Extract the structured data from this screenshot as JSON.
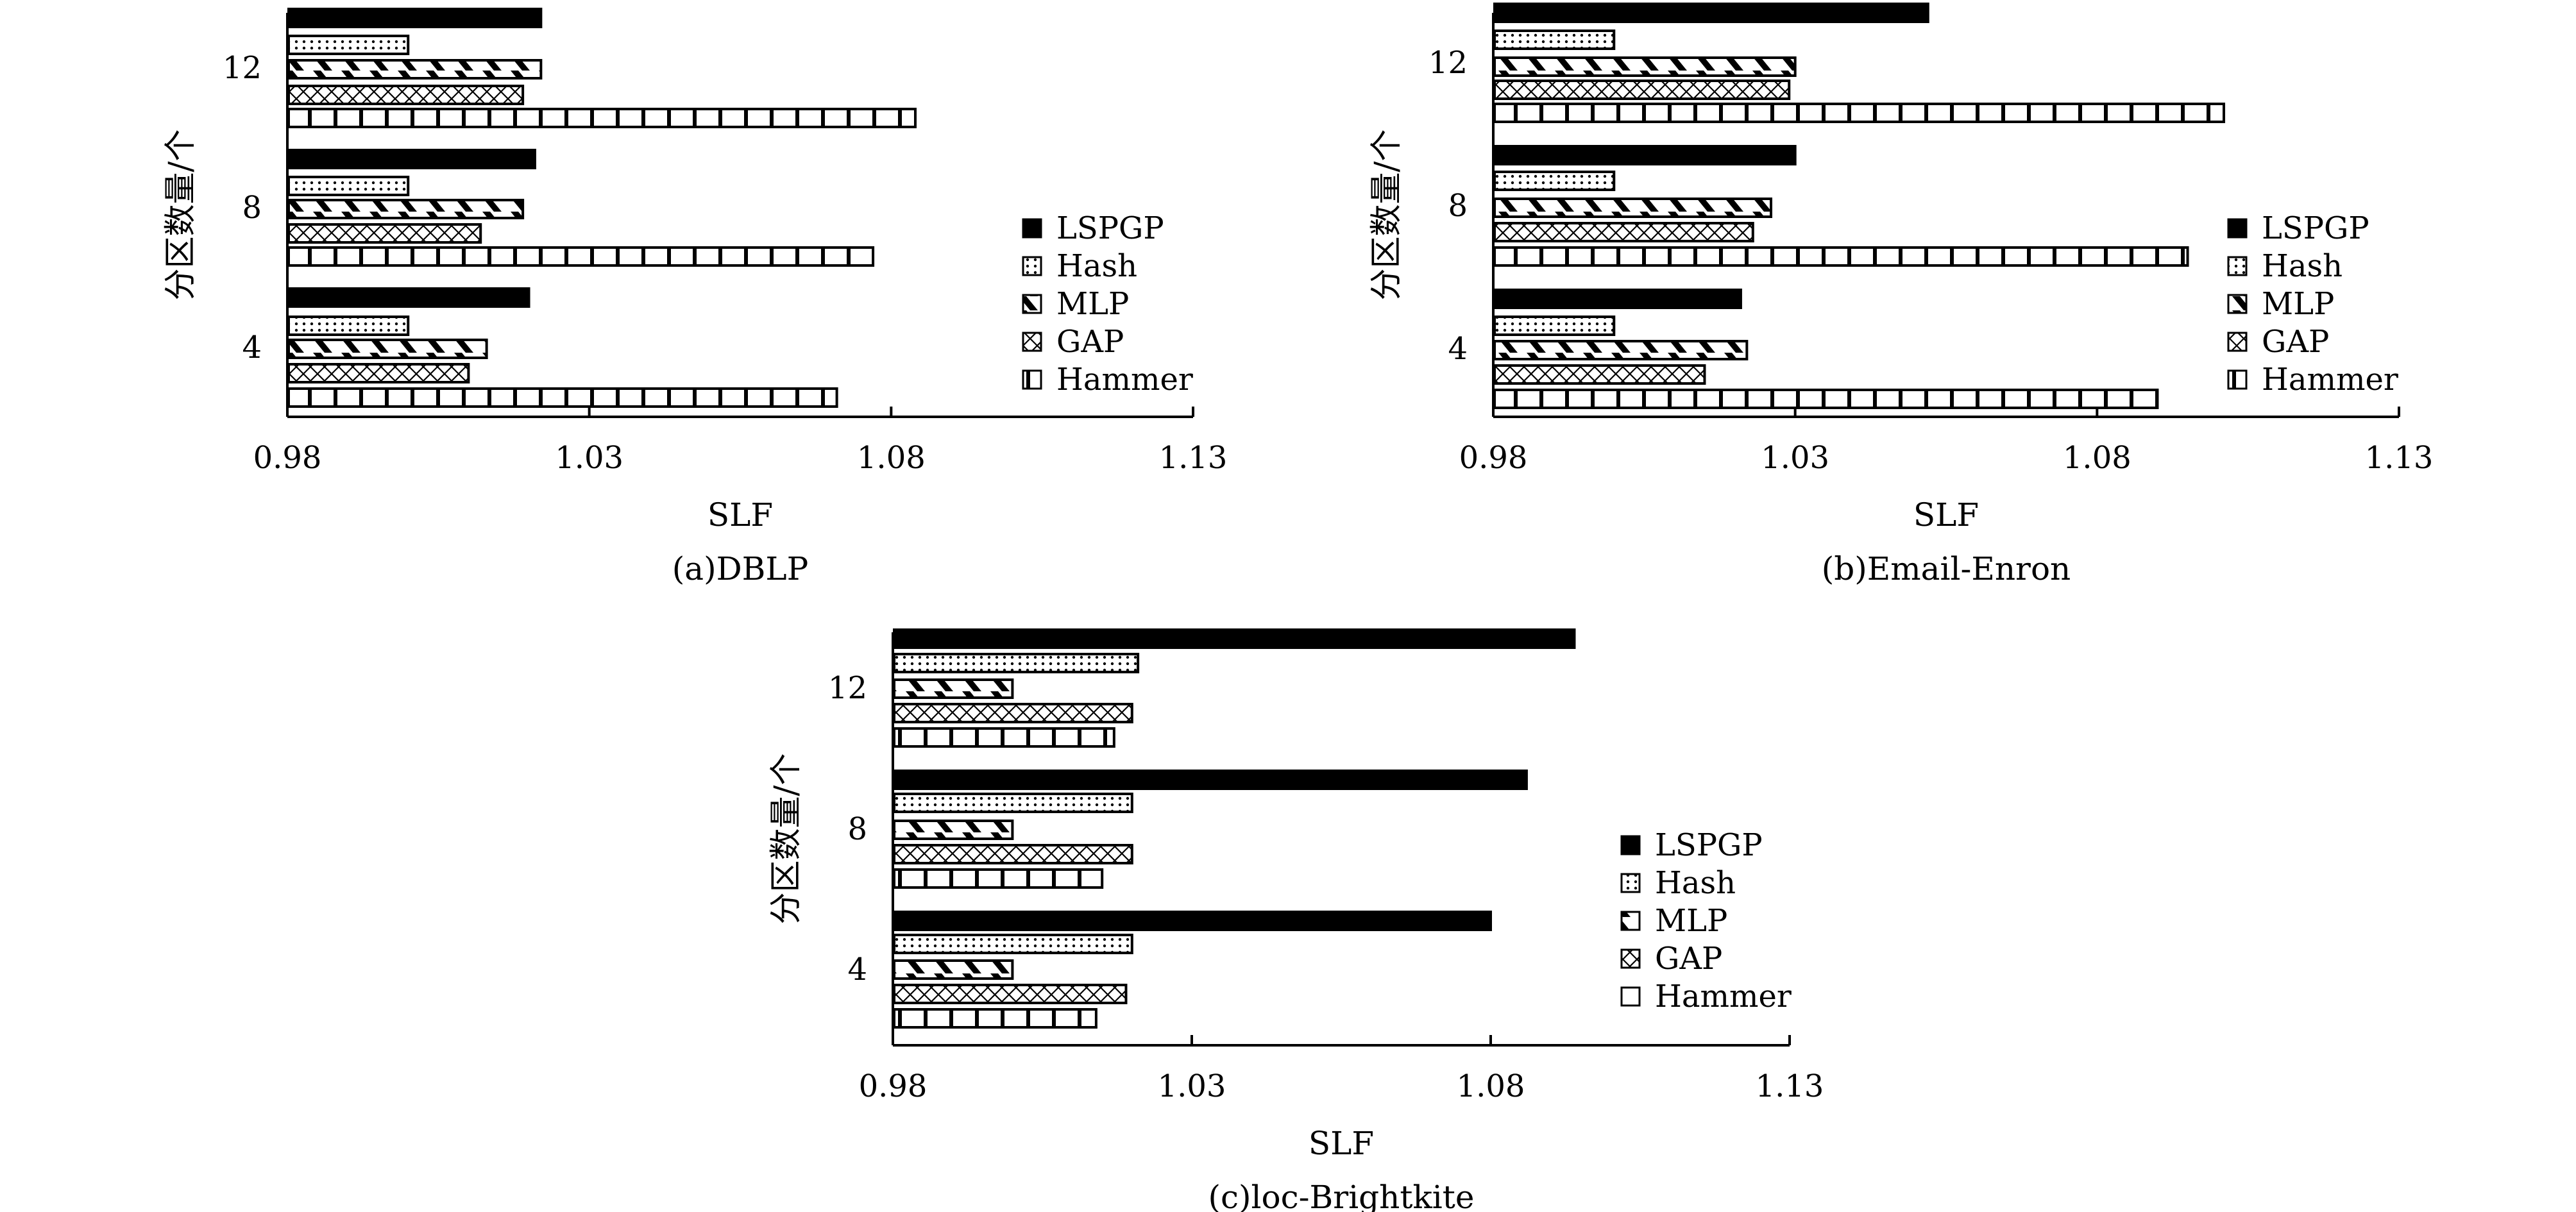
{
  "chart_data": [
    {
      "id": "a",
      "type": "bar",
      "orientation": "horizontal",
      "caption": "(a)DBLP",
      "xlabel": "SLF",
      "ylabel": "分区数量/个",
      "xlim": [
        0.98,
        1.13
      ],
      "xticks": [
        "0.98",
        "1.03",
        "1.08",
        "1.13"
      ],
      "categories": [
        "12",
        "8",
        "4"
      ],
      "series": [
        {
          "name": "LSPGP",
          "values": [
            1.022,
            1.021,
            1.02
          ]
        },
        {
          "name": "Hash",
          "values": [
            1.0,
            1.0,
            1.0
          ]
        },
        {
          "name": "MLP",
          "values": [
            1.022,
            1.019,
            1.013
          ]
        },
        {
          "name": "GAP",
          "values": [
            1.019,
            1.012,
            1.01
          ]
        },
        {
          "name": "Hammer",
          "values": [
            1.084,
            1.077,
            1.071
          ]
        }
      ],
      "legend": [
        "LSPGP",
        "Hash",
        "MLP",
        "GAP",
        "Hammer"
      ]
    },
    {
      "id": "b",
      "type": "bar",
      "orientation": "horizontal",
      "caption": "(b)Email-Enron",
      "xlabel": "SLF",
      "ylabel": "分区数量/个",
      "xlim": [
        0.98,
        1.13
      ],
      "xticks": [
        "0.98",
        "1.03",
        "1.08",
        "1.13"
      ],
      "categories": [
        "12",
        "8",
        "4"
      ],
      "series": [
        {
          "name": "LSPGP",
          "values": [
            1.052,
            1.03,
            1.021
          ]
        },
        {
          "name": "Hash",
          "values": [
            1.0,
            1.0,
            1.0
          ]
        },
        {
          "name": "MLP",
          "values": [
            1.03,
            1.026,
            1.022
          ]
        },
        {
          "name": "GAP",
          "values": [
            1.029,
            1.023,
            1.015
          ]
        },
        {
          "name": "Hammer",
          "values": [
            1.101,
            1.095,
            1.09
          ]
        }
      ],
      "legend": [
        "LSPGP",
        "Hash",
        "MLP",
        "GAP",
        "Hammer"
      ]
    },
    {
      "id": "c",
      "type": "bar",
      "orientation": "horizontal",
      "caption": "(c)loc-Brightkite",
      "xlabel": "SLF",
      "ylabel": "分区数量/个",
      "xlim": [
        0.98,
        1.13
      ],
      "xticks": [
        "0.98",
        "1.03",
        "1.08",
        "1.13"
      ],
      "categories": [
        "12",
        "8",
        "4"
      ],
      "series": [
        {
          "name": "LSPGP",
          "values": [
            1.094,
            1.086,
            1.08
          ]
        },
        {
          "name": "Hash",
          "values": [
            1.021,
            1.02,
            1.02
          ]
        },
        {
          "name": "MLP",
          "values": [
            1.0,
            1.0,
            1.0
          ]
        },
        {
          "name": "GAP",
          "values": [
            1.02,
            1.02,
            1.019
          ]
        },
        {
          "name": "Hammer",
          "values": [
            1.017,
            1.015,
            1.014
          ]
        }
      ],
      "legend": [
        "LSPGP",
        "Hash",
        "MLP",
        "GAP",
        "Hammer"
      ]
    }
  ]
}
